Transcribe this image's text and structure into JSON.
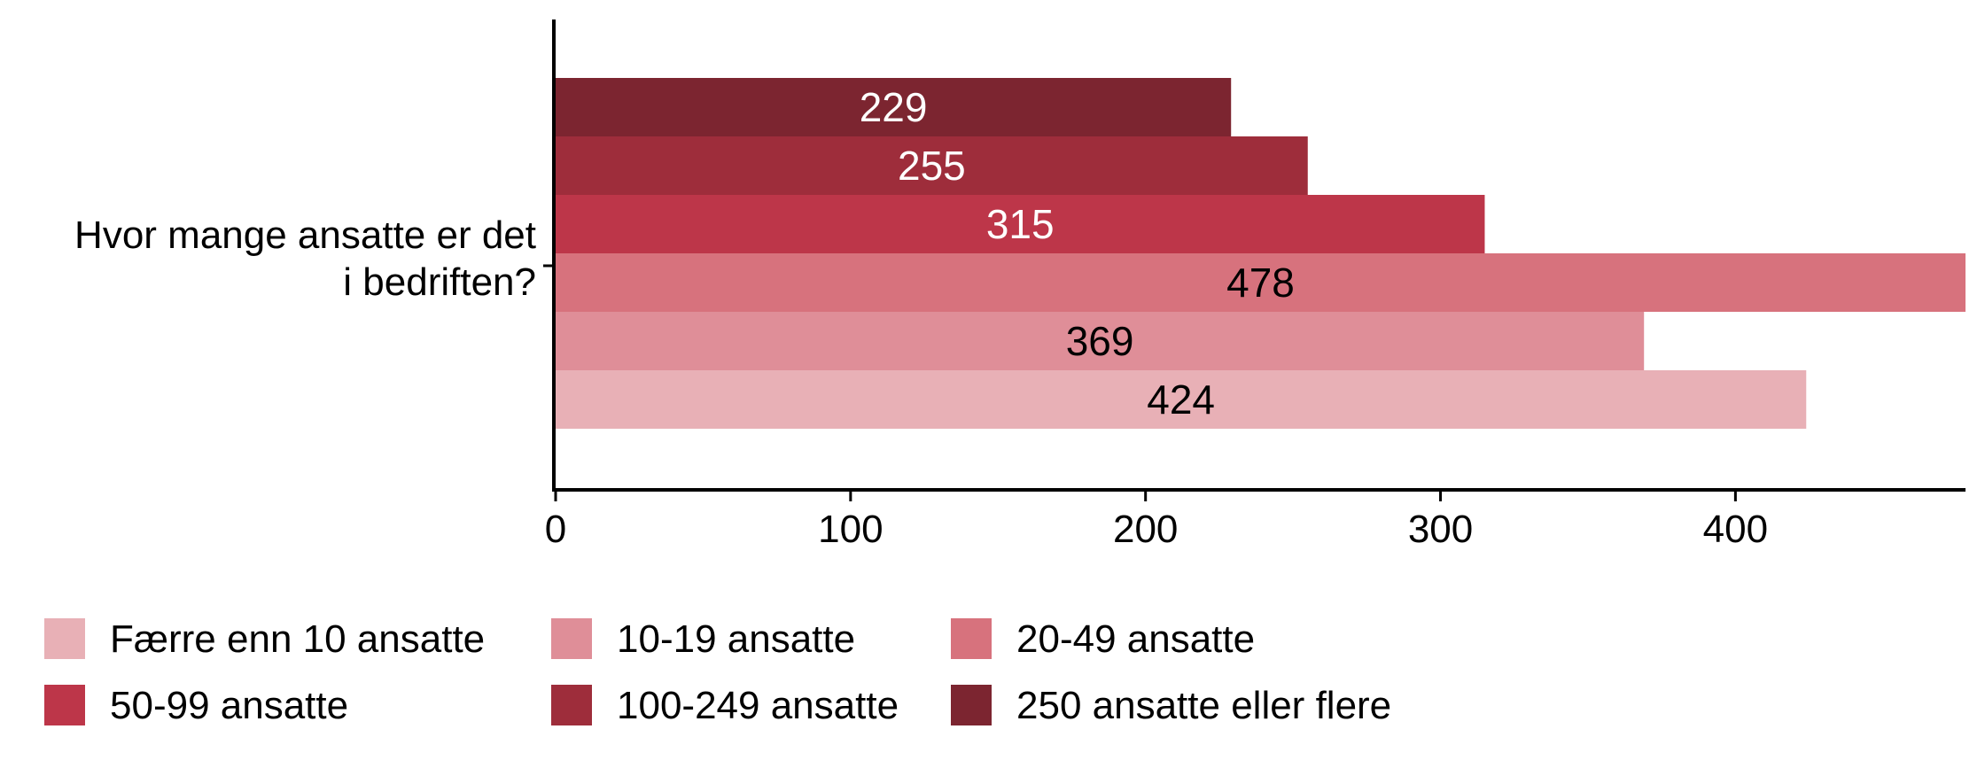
{
  "chart_data": {
    "type": "bar",
    "orientation": "horizontal",
    "categories": [
      "Hvor mange ansatte er det i bedriften?"
    ],
    "category_label_lines": [
      "Hvor mange ansatte er det",
      "i bedriften?"
    ],
    "series": [
      {
        "name": "Færre enn 10 ansatte",
        "values": [
          424
        ],
        "color": "#E8B0B6",
        "label_color": "#000000"
      },
      {
        "name": "10-19 ansatte",
        "values": [
          369
        ],
        "color": "#DF8E98",
        "label_color": "#000000"
      },
      {
        "name": "20-49 ansatte",
        "values": [
          478
        ],
        "color": "#D7727D",
        "label_color": "#000000"
      },
      {
        "name": "50-99 ansatte",
        "values": [
          315
        ],
        "color": "#BD3649",
        "label_color": "#ffffff"
      },
      {
        "name": "100-249 ansatte",
        "values": [
          255
        ],
        "color": "#9E2D3B",
        "label_color": "#ffffff"
      },
      {
        "name": "250 ansatte eller flere",
        "values": [
          229
        ],
        "color": "#7C2530",
        "label_color": "#ffffff"
      }
    ],
    "xlim": [
      0,
      478
    ],
    "xticks": [
      0,
      100,
      200,
      300,
      400
    ],
    "grid": false,
    "legend": "bottom-left"
  }
}
